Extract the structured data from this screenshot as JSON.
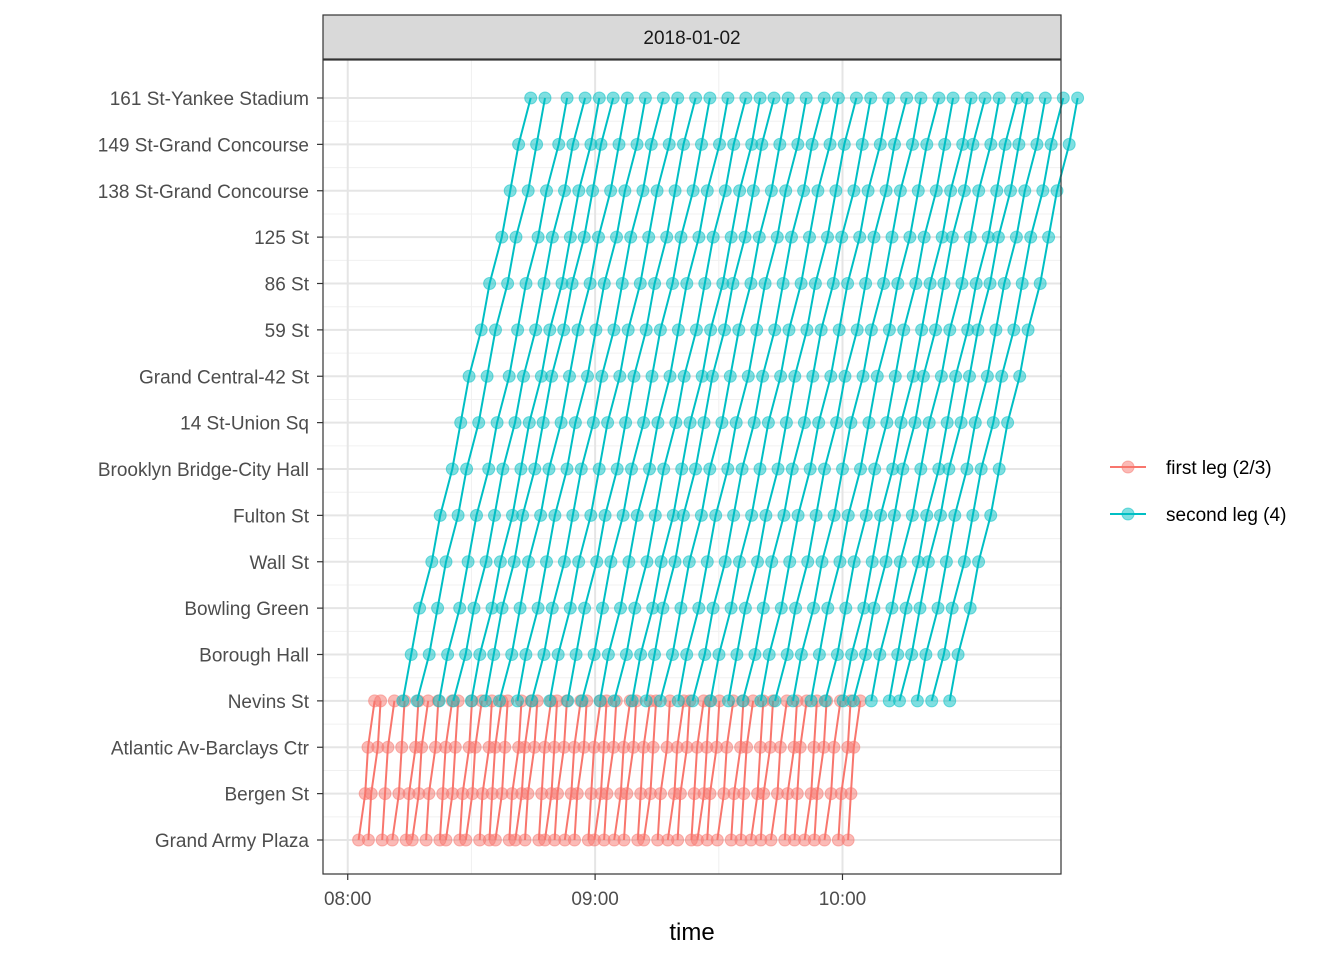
{
  "chart_data": {
    "type": "line",
    "facet_label": "2018-01-02",
    "xlabel": "time",
    "ylabel": "",
    "x_ticks": [
      "08:00",
      "09:00",
      "10:00"
    ],
    "x_range": [
      "07:54",
      "10:53"
    ],
    "stations": [
      "Grand Army Plaza",
      "Bergen St",
      "Atlantic Av-Barclays Ctr",
      "Nevins St",
      "Borough Hall",
      "Bowling Green",
      "Wall St",
      "Fulton St",
      "Brooklyn Bridge-City Hall",
      "14 St-Union Sq",
      "Grand Central-42 St",
      "59 St",
      "86 St",
      "125 St",
      "138 St-Grand Concourse",
      "149 St-Grand Concourse",
      "161 St-Yankee Stadium"
    ],
    "legend_position": "right",
    "grid": true,
    "series": [
      {
        "name": "first leg (2/3)",
        "color": "#F8766D",
        "trips_start": [
          "08:03",
          "08:05",
          "08:08",
          "08:11",
          "08:14",
          "08:16",
          "08:19",
          "08:22",
          "08:24",
          "08:27",
          "08:29",
          "08:32",
          "08:34",
          "08:36",
          "08:39",
          "08:41",
          "08:43",
          "08:46",
          "08:48",
          "08:50",
          "08:53",
          "08:55",
          "08:58",
          "09:00",
          "09:02",
          "09:05",
          "09:07",
          "09:10",
          "09:12",
          "09:15",
          "09:18",
          "09:20",
          "09:23",
          "09:25",
          "09:27",
          "09:30",
          "09:33",
          "09:35",
          "09:38",
          "09:40",
          "09:43",
          "09:46",
          "09:48",
          "09:51",
          "09:53",
          "09:56",
          "09:59",
          "10:01"
        ],
        "trip_minutes_per_station": 1.05
      },
      {
        "name": "second leg (4)",
        "color": "#00BFC4",
        "trips_start": [
          "08:13",
          "08:17",
          "08:22",
          "08:26",
          "08:30",
          "08:33",
          "08:37",
          "08:41",
          "08:45",
          "08:49",
          "08:53",
          "08:57",
          "09:01",
          "09:05",
          "09:09",
          "09:12",
          "09:16",
          "09:20",
          "09:24",
          "09:28",
          "09:32",
          "09:36",
          "09:40",
          "09:44",
          "09:48",
          "09:52",
          "09:56",
          "10:00",
          "10:03",
          "10:07",
          "10:11",
          "10:14",
          "10:18",
          "10:22",
          "10:26"
        ],
        "trip_minutes_per_station": 2.4
      }
    ]
  }
}
